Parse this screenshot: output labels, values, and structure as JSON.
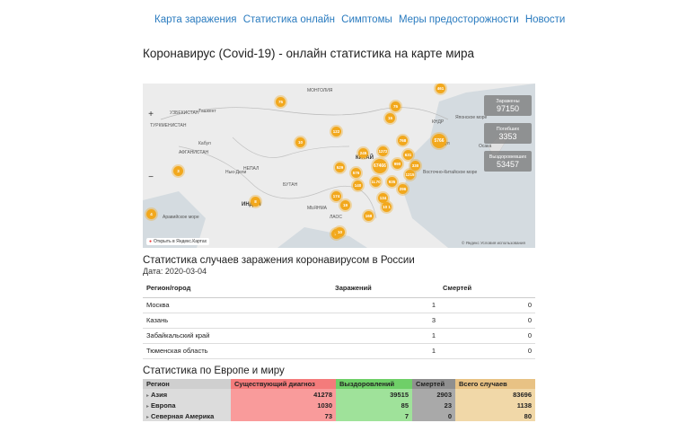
{
  "nav": {
    "items": [
      "Карта заражения",
      "Статистика онлайн",
      "Симптомы",
      "Меры предосторожности",
      "Новости"
    ]
  },
  "page_title": "Коронавирус (Covid-19) - онлайн статистика на карте мира",
  "map": {
    "labels": [
      {
        "text": "МОНГОЛИЯ",
        "cls": ""
      },
      {
        "text": "УЗБЕКИСТАН",
        "cls": ""
      },
      {
        "text": "Ташкент",
        "cls": ""
      },
      {
        "text": "ТУРКМЕНИСТАН",
        "cls": ""
      },
      {
        "text": "Кабул",
        "cls": ""
      },
      {
        "text": "АФГАНИСТАН",
        "cls": ""
      },
      {
        "text": "Нью-Дели",
        "cls": ""
      },
      {
        "text": "НЕПАЛ",
        "cls": ""
      },
      {
        "text": "БУТАН",
        "cls": ""
      },
      {
        "text": "ИНДИЯ",
        "cls": "big"
      },
      {
        "text": "МЬЯНМА",
        "cls": ""
      },
      {
        "text": "ЛАОС",
        "cls": ""
      },
      {
        "text": "КИТАЙ",
        "cls": "big"
      },
      {
        "text": "Сеул",
        "cls": ""
      },
      {
        "text": "КНДР",
        "cls": ""
      },
      {
        "text": "Японское море",
        "cls": ""
      },
      {
        "text": "Осака",
        "cls": ""
      },
      {
        "text": "Восточно-Китайское море",
        "cls": ""
      },
      {
        "text": "Аравийское море",
        "cls": ""
      }
    ],
    "clusters": [
      "461",
      "75",
      "15",
      "75",
      "122",
      "10",
      "245",
      "768",
      "5766",
      "1272",
      "529",
      "67466",
      "990",
      "330",
      "576",
      "631",
      "140",
      "1L70",
      "935",
      "1215",
      "174",
      "296",
      "19",
      "134",
      "10 1",
      "168",
      "4",
      "3",
      "8",
      "11",
      "10"
    ],
    "zoom_in": "+",
    "zoom_out": "−",
    "stats": [
      {
        "title": "Заражены",
        "value": "97150"
      },
      {
        "title": "Погибших",
        "value": "3353"
      },
      {
        "title": "Выздоровевших",
        "value": "53457"
      }
    ],
    "open_link": "Открыть в Яндекс.Картах",
    "copyright": "© Яндекс  Условия использования"
  },
  "russia": {
    "heading": "Статистика случаев заражения коронавирусом в России",
    "date": "Дата: 2020-03-04",
    "columns": [
      "Регион/город",
      "Заражений",
      "Смертей"
    ],
    "rows": [
      {
        "region": "Москва",
        "infected": "1",
        "deaths": "0"
      },
      {
        "region": "Казань",
        "infected": "3",
        "deaths": "0"
      },
      {
        "region": "Забайкальский край",
        "infected": "1",
        "deaths": "0"
      },
      {
        "region": "Тюменская область",
        "infected": "1",
        "deaths": "0"
      }
    ]
  },
  "world": {
    "heading": "Статистика по Европе и миру",
    "columns": [
      "Регион",
      "Существующий диагноз",
      "Выздоровлений",
      "Смертей",
      "Всего случаев"
    ],
    "rows": [
      {
        "region": "Азия",
        "active": "41278",
        "recovered": "39515",
        "deaths": "2903",
        "total": "83696"
      },
      {
        "region": "Европа",
        "active": "1030",
        "recovered": "85",
        "deaths": "23",
        "total": "1138"
      },
      {
        "region": "Северная Америка",
        "active": "73",
        "recovered": "7",
        "deaths": "0",
        "total": "80"
      }
    ]
  },
  "colors": {
    "link": "#2a7bbf",
    "cluster": "#f2a81d",
    "active": "#f99b9b",
    "recovered": "#9fe29a",
    "deaths": "#a9a9a9",
    "total": "#f1d8a8"
  }
}
